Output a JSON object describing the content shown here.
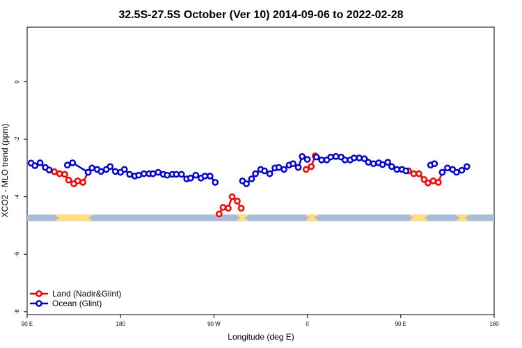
{
  "chart_data": {
    "type": "line",
    "title": "32.5S-27.5S October (Ver 10)   2014-09-06 to 2022-02-28",
    "xlabel": "Longitude (deg E)",
    "ylabel": "XCO2 - MLO trend (ppm)",
    "xlim": [
      90,
      450
    ],
    "ylim": [
      -8.1,
      1.9
    ],
    "x_ticks": [
      {
        "value": 90,
        "label": "90 E"
      },
      {
        "value": 162,
        "label": "180"
      },
      {
        "value": 234,
        "label": "90 W"
      },
      {
        "value": 306,
        "label": "0"
      },
      {
        "value": 378,
        "label": "90 E"
      },
      {
        "value": 450,
        "label": "180"
      }
    ],
    "y_ticks": [
      {
        "value": 0,
        "label": "0"
      },
      {
        "value": -2,
        "label": "-2"
      },
      {
        "value": -4,
        "label": "-4"
      },
      {
        "value": -6,
        "label": "-6"
      },
      {
        "value": -8,
        "label": "-8"
      }
    ],
    "grid": false,
    "legend_position": "bottom-left",
    "land_strip": {
      "y_range": [
        -4.85,
        -4.62
      ],
      "ocean_color": "#a8bcd8",
      "land_color": "#ffdd80",
      "land_x_ranges": [
        [
          111,
          141
        ],
        [
          251,
          261
        ],
        [
          304,
          315
        ],
        [
          384,
          400
        ],
        [
          420,
          431
        ]
      ]
    },
    "series": [
      {
        "name": "Land (Nadir&Glint)",
        "color": "#ff0000",
        "segments": [
          [
            [
              111,
              -3.13
            ],
            [
              115,
              -3.2
            ],
            [
              119,
              -3.22
            ],
            [
              122,
              -3.42
            ],
            [
              126,
              -3.55
            ],
            [
              129,
              -3.45
            ],
            [
              133,
              -3.5
            ],
            [
              137,
              -3.15
            ]
          ],
          [
            [
              238,
              -4.6
            ],
            [
              241,
              -4.37
            ],
            [
              245,
              -4.4
            ],
            [
              248,
              -4.0
            ],
            [
              252,
              -4.15
            ],
            [
              255,
              -4.4
            ]
          ],
          [
            [
              305,
              -3.05
            ],
            [
              309,
              -2.95
            ],
            [
              312,
              -2.58
            ]
          ],
          [
            [
              384,
              -3.1
            ],
            [
              388,
              -3.2
            ],
            [
              392,
              -3.2
            ],
            [
              396,
              -3.4
            ],
            [
              399,
              -3.52
            ],
            [
              403,
              -3.45
            ],
            [
              407,
              -3.5
            ],
            [
              410,
              -3.15
            ]
          ]
        ]
      },
      {
        "name": "Ocean (Glint)",
        "color": "#0000dd",
        "segments": [
          [
            [
              93,
              -2.83
            ],
            [
              96,
              -2.92
            ],
            [
              100,
              -2.82
            ],
            [
              104,
              -2.98
            ],
            [
              107,
              -3.07
            ]
          ],
          [
            [
              121,
              -2.9
            ],
            [
              125,
              -2.82
            ],
            [
              137,
              -3.15
            ],
            [
              140,
              -3.0
            ],
            [
              144,
              -3.05
            ],
            [
              147,
              -3.12
            ],
            [
              151,
              -3.05
            ],
            [
              154,
              -2.95
            ],
            [
              158,
              -3.12
            ],
            [
              162,
              -3.15
            ],
            [
              165,
              -3.05
            ],
            [
              169,
              -3.22
            ],
            [
              173,
              -3.28
            ],
            [
              176,
              -3.25
            ],
            [
              180,
              -3.2
            ],
            [
              184,
              -3.2
            ],
            [
              187,
              -3.2
            ],
            [
              191,
              -3.15
            ],
            [
              195,
              -3.22
            ],
            [
              198,
              -3.25
            ],
            [
              202,
              -3.22
            ],
            [
              205,
              -3.22
            ],
            [
              209,
              -3.22
            ],
            [
              213,
              -3.38
            ],
            [
              216,
              -3.35
            ],
            [
              220,
              -3.25
            ],
            [
              224,
              -3.35
            ],
            [
              227,
              -3.28
            ],
            [
              231,
              -3.28
            ],
            [
              235,
              -3.5
            ]
          ],
          [
            [
              256,
              -3.45
            ],
            [
              259,
              -3.55
            ],
            [
              263,
              -3.38
            ],
            [
              266,
              -3.2
            ],
            [
              270,
              -3.05
            ],
            [
              273,
              -3.1
            ],
            [
              277,
              -3.2
            ],
            [
              281,
              -3.0
            ],
            [
              284,
              -2.98
            ],
            [
              288,
              -3.05
            ],
            [
              292,
              -2.9
            ],
            [
              295,
              -2.85
            ],
            [
              299,
              -2.98
            ],
            [
              302,
              -2.6
            ],
            [
              306,
              -2.7
            ]
          ],
          [
            [
              313,
              -2.62
            ],
            [
              317,
              -2.72
            ],
            [
              321,
              -2.72
            ],
            [
              324,
              -2.62
            ],
            [
              328,
              -2.6
            ],
            [
              332,
              -2.62
            ],
            [
              335,
              -2.72
            ],
            [
              339,
              -2.72
            ],
            [
              342,
              -2.65
            ],
            [
              346,
              -2.65
            ],
            [
              350,
              -2.68
            ],
            [
              353,
              -2.8
            ],
            [
              357,
              -2.85
            ],
            [
              361,
              -2.82
            ],
            [
              364,
              -2.88
            ],
            [
              368,
              -2.8
            ],
            [
              371,
              -2.95
            ],
            [
              375,
              -3.05
            ],
            [
              379,
              -3.05
            ],
            [
              382,
              -3.1
            ]
          ],
          [
            [
              401,
              -2.9
            ],
            [
              404,
              -2.85
            ]
          ],
          [
            [
              410,
              -3.15
            ],
            [
              414,
              -3.0
            ],
            [
              418,
              -3.05
            ],
            [
              421,
              -3.15
            ],
            [
              425,
              -3.08
            ],
            [
              429,
              -2.95
            ]
          ]
        ]
      }
    ]
  }
}
